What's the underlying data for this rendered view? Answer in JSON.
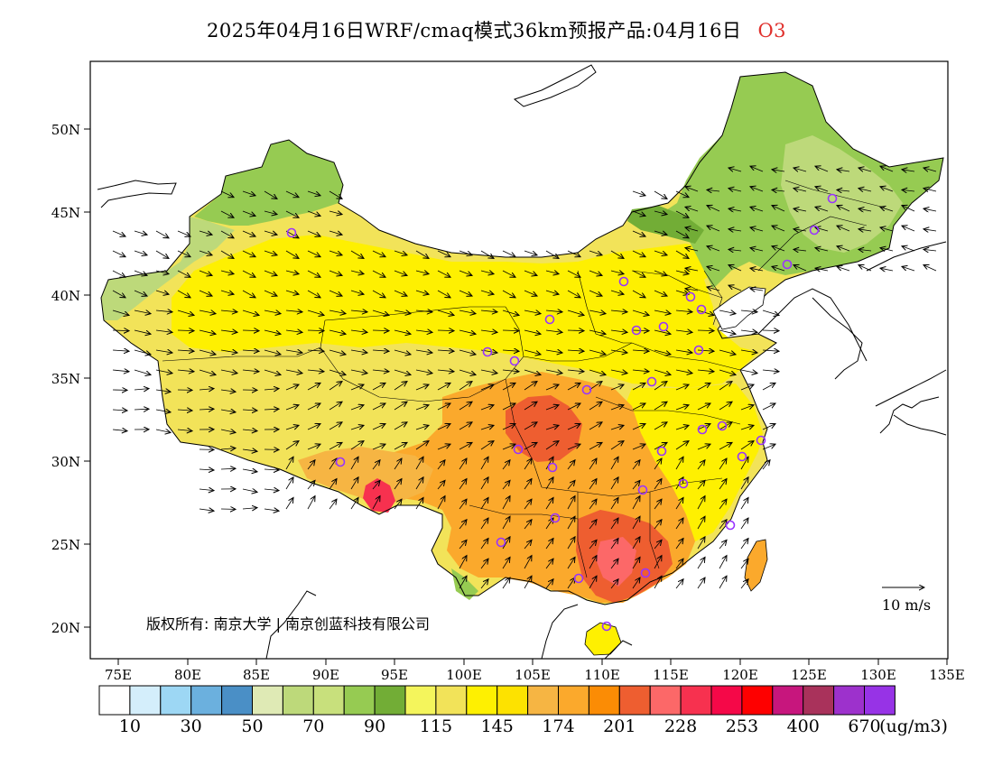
{
  "title": {
    "main": "2025年04月16日WRF/cmaq模式36km预报产品:04月16日",
    "species": "O3"
  },
  "map": {
    "lat_labels": [
      "50N",
      "45N",
      "40N",
      "35N",
      "30N",
      "25N",
      "20N"
    ],
    "lon_labels": [
      "75E",
      "80E",
      "85E",
      "90E",
      "95E",
      "100E",
      "105E",
      "110E",
      "115E",
      "120E",
      "125E",
      "130E",
      "135E"
    ],
    "copyright": "版权所有: 南京大学 | 南京创蓝科技有限公司",
    "wind_reference": "10 m/s"
  },
  "colorbar": {
    "colors": [
      "#ffffff",
      "#d4eefb",
      "#9dd7f4",
      "#6bb0de",
      "#4a8fc6",
      "#dfeab5",
      "#bdd97a",
      "#c8e07c",
      "#96cb52",
      "#72ad36",
      "#f4f55c",
      "#f2e359",
      "#fef001",
      "#fde200",
      "#f6b543",
      "#fba92c",
      "#fb8c05",
      "#ee5e30",
      "#fc6868",
      "#f7314f",
      "#f50848",
      "#fe0000",
      "#c7167d",
      "#a9325b",
      "#9d31cc",
      "#9733e6"
    ],
    "labels": [
      "10",
      "30",
      "50",
      "70",
      "90",
      "115",
      "145",
      "174",
      "201",
      "228",
      "253",
      "400",
      "670"
    ],
    "unit": "(ug/m3)"
  },
  "colors": {
    "green_dark": "#72ad36",
    "green_mid": "#96cb52",
    "green_light": "#bdd97a",
    "yellow_light": "#f2e359",
    "yellow": "#fef001",
    "orange_light": "#f6b543",
    "orange": "#fba92c",
    "orange_dark": "#ee5e30",
    "red": "#f7314f",
    "station_marker": "#9933ff"
  }
}
